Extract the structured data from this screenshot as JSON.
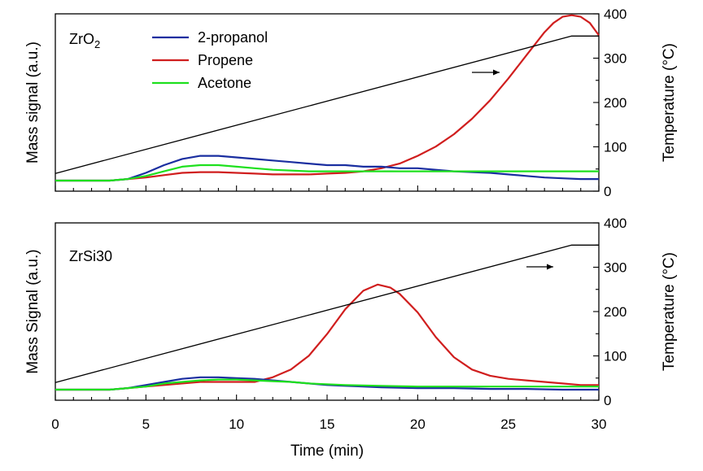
{
  "chart_data": {
    "type": "line",
    "x_label": "Time (min)",
    "x_range": [
      0,
      30
    ],
    "x_ticks": [
      0,
      5,
      10,
      15,
      20,
      25,
      30
    ],
    "legend": [
      {
        "name": "2-propanol",
        "color": "#1a2ea0"
      },
      {
        "name": "Propene",
        "color": "#d01e1e"
      },
      {
        "name": "Acetone",
        "color": "#1ee01e"
      }
    ],
    "panels": [
      {
        "label_main": "ZrO",
        "label_sub": "2",
        "y_left_label": "Mass signal (a.u.)",
        "y_right_label": "Temperature (°C)",
        "y_right_range": [
          0,
          400
        ],
        "y_right_ticks": [
          0,
          100,
          200,
          300,
          400
        ],
        "arrow": "right axis",
        "series": [
          {
            "name": "Propene",
            "x": [
              0,
              3,
              4,
              5,
              6,
              7,
              8,
              9,
              10,
              11,
              12,
              13,
              14,
              15,
              16,
              17,
              18,
              19,
              20,
              21,
              22,
              23,
              24,
              25,
              26,
              27,
              27.5,
              28,
              28.5,
              29,
              29.5,
              30
            ],
            "y": [
              0.0,
              0.0,
              0.01,
              0.02,
              0.035,
              0.05,
              0.055,
              0.055,
              0.05,
              0.045,
              0.04,
              0.04,
              0.04,
              0.045,
              0.05,
              0.06,
              0.08,
              0.11,
              0.16,
              0.22,
              0.3,
              0.4,
              0.52,
              0.66,
              0.81,
              0.96,
              1.02,
              1.06,
              1.07,
              1.06,
              1.02,
              0.94
            ]
          },
          {
            "name": "2-propanol",
            "x": [
              0,
              3,
              4,
              5,
              6,
              7,
              8,
              9,
              10,
              11,
              12,
              13,
              14,
              15,
              16,
              17,
              18,
              19,
              20,
              22,
              24,
              26,
              27,
              28,
              29,
              30
            ],
            "y": [
              0.0,
              0.0,
              0.01,
              0.05,
              0.1,
              0.14,
              0.16,
              0.16,
              0.15,
              0.14,
              0.13,
              0.12,
              0.11,
              0.1,
              0.1,
              0.09,
              0.09,
              0.08,
              0.08,
              0.06,
              0.05,
              0.03,
              0.02,
              0.015,
              0.01,
              0.01
            ]
          },
          {
            "name": "Acetone",
            "x": [
              0,
              3,
              4,
              5,
              6,
              7,
              8,
              9,
              10,
              11,
              12,
              14,
              16,
              18,
              20,
              22,
              24,
              26,
              28,
              30
            ],
            "y": [
              0.0,
              0.0,
              0.01,
              0.03,
              0.06,
              0.09,
              0.1,
              0.1,
              0.09,
              0.08,
              0.07,
              0.06,
              0.06,
              0.06,
              0.06,
              0.06,
              0.06,
              0.06,
              0.06,
              0.06
            ]
          },
          {
            "name": "Temperature",
            "x": [
              0,
              28.5,
              30
            ],
            "y": [
              40,
              350,
              350
            ]
          }
        ]
      },
      {
        "label_main": "ZrSi30",
        "y_left_label": "Mass Signal (a.u.)",
        "y_right_label": "Temperature (°C)",
        "y_right_range": [
          0,
          400
        ],
        "y_right_ticks": [
          0,
          100,
          200,
          300,
          400
        ],
        "arrow": "right axis",
        "series": [
          {
            "name": "Propene",
            "x": [
              0,
              3,
              4,
              5,
              6,
              7,
              8,
              9,
              10,
              11,
              12,
              13,
              14,
              15,
              16,
              17,
              17.8,
              18.5,
              19,
              20,
              21,
              22,
              23,
              24,
              25,
              26,
              27,
              28,
              29,
              30
            ],
            "y": [
              0.0,
              0.0,
              0.01,
              0.02,
              0.03,
              0.04,
              0.05,
              0.05,
              0.05,
              0.05,
              0.08,
              0.13,
              0.22,
              0.36,
              0.52,
              0.64,
              0.68,
              0.66,
              0.62,
              0.5,
              0.34,
              0.21,
              0.13,
              0.09,
              0.07,
              0.06,
              0.05,
              0.04,
              0.03,
              0.03
            ]
          },
          {
            "name": "2-propanol",
            "x": [
              0,
              3,
              4,
              5,
              6,
              7,
              8,
              9,
              10,
              11,
              12,
              13,
              14,
              15,
              16,
              17,
              18,
              20,
              22,
              24,
              26,
              28,
              30
            ],
            "y": [
              0.0,
              0.0,
              0.01,
              0.03,
              0.05,
              0.07,
              0.08,
              0.08,
              0.075,
              0.07,
              0.06,
              0.05,
              0.04,
              0.03,
              0.025,
              0.02,
              0.015,
              0.01,
              0.01,
              0.005,
              0.005,
              0.0,
              0.0
            ]
          },
          {
            "name": "Acetone",
            "x": [
              0,
              3,
              4,
              5,
              6,
              7,
              8,
              9,
              10,
              11,
              12,
              13,
              14,
              16,
              18,
              20,
              22,
              24,
              26,
              28,
              30
            ],
            "y": [
              0.0,
              0.0,
              0.01,
              0.02,
              0.04,
              0.05,
              0.06,
              0.065,
              0.065,
              0.06,
              0.055,
              0.05,
              0.04,
              0.03,
              0.025,
              0.02,
              0.02,
              0.02,
              0.02,
              0.02,
              0.02
            ]
          },
          {
            "name": "Temperature",
            "x": [
              0,
              28.5,
              30
            ],
            "y": [
              40,
              350,
              350
            ]
          }
        ]
      }
    ]
  }
}
